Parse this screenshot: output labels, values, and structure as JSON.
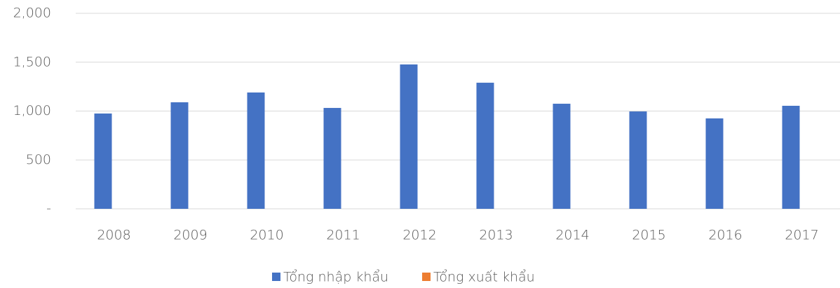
{
  "chart_data": {
    "type": "bar",
    "categories": [
      "2008",
      "2009",
      "2010",
      "2011",
      "2012",
      "2013",
      "2014",
      "2015",
      "2016",
      "2017"
    ],
    "series": [
      {
        "name": "Tổng nhập khẩu",
        "color": "#4472c4",
        "values": [
          975,
          1090,
          1190,
          1032,
          1477,
          1290,
          1075,
          996,
          925,
          1054
        ]
      },
      {
        "name": "Tổng xuất khẩu",
        "color": "#ed7d31",
        "values": [
          0,
          0,
          0,
          0,
          0,
          0,
          0,
          0,
          0,
          0
        ]
      }
    ],
    "ylim": [
      0,
      2000
    ],
    "yticks": [
      {
        "value": 0,
        "label": "-"
      },
      500,
      {
        "value": 1000,
        "label": "1,000"
      },
      {
        "value": 1500,
        "label": "1,500"
      },
      {
        "value": 2000,
        "label": "2,000"
      }
    ],
    "grid": true,
    "legend": "bottom"
  }
}
